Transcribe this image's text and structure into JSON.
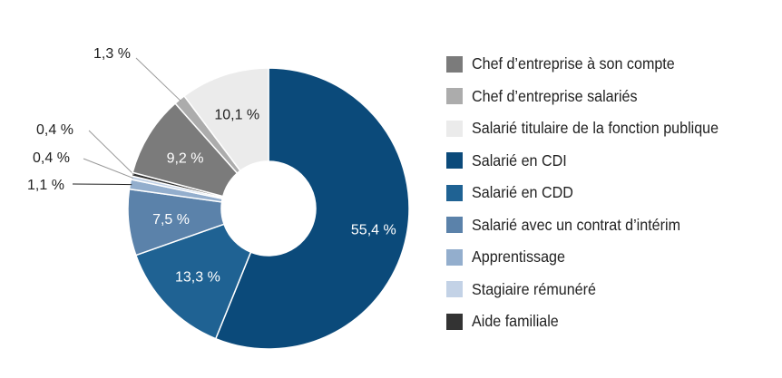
{
  "chart_data": {
    "type": "pie",
    "donut": true,
    "categories": [
      "Salarié en CDI",
      "Salarié en CDD",
      "Salarié avec un contrat d’intérim",
      "Apprentissage",
      "Stagiaire rémunéré",
      "Aide familiale",
      "Chef d’entreprise à son compte",
      "Chef d’entreprise salariés",
      "Salarié titulaire de la fonction publique"
    ],
    "values": [
      55.4,
      13.3,
      7.5,
      1.1,
      0.4,
      0.4,
      9.2,
      1.3,
      10.1
    ],
    "value_labels": [
      "55,4 %",
      "13,3 %",
      "7,5 %",
      "1,1 %",
      "0,4 %",
      "0,4 %",
      "9,2 %",
      "1,3 %",
      "10,1 %"
    ],
    "colors": [
      "#0b4a7a",
      "#1f6293",
      "#5b82aa",
      "#93aecd",
      "#c3d2e6",
      "#333333",
      "#7b7b7b",
      "#acacac",
      "#ebebeb"
    ],
    "legend": [
      {
        "label": "Chef d’entreprise à son compte",
        "color": "#7b7b7b"
      },
      {
        "label": "Chef d’entreprise salariés",
        "color": "#acacac"
      },
      {
        "label": "Salarié titulaire de la fonction publique",
        "color": "#ebebeb"
      },
      {
        "label": "Salarié en CDI",
        "color": "#0b4a7a"
      },
      {
        "label": "Salarié en CDD",
        "color": "#1f6293"
      },
      {
        "label": "Salarié avec un contrat d’intérim",
        "color": "#5b82aa"
      },
      {
        "label": "Apprentissage",
        "color": "#93aecd"
      },
      {
        "label": "Stagiaire rémunéré",
        "color": "#c3d2e6"
      },
      {
        "label": "Aide familiale",
        "color": "#333333"
      }
    ],
    "legend_position": "right",
    "grid": false
  }
}
